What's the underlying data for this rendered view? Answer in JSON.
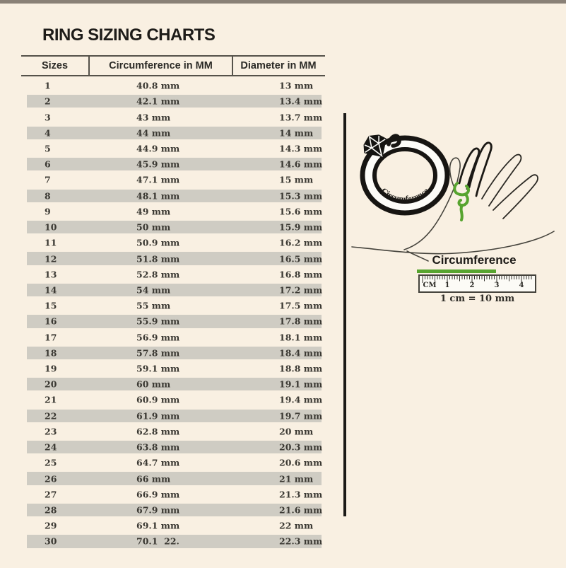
{
  "page": {
    "title": "RING SIZING CHARTS"
  },
  "chart_data": {
    "type": "table",
    "title": "RING SIZING CHARTS",
    "columns": [
      "Sizes",
      "Circumference in MM",
      "Diameter in MM"
    ],
    "rows": [
      {
        "size": "1",
        "circumference": "40.8 mm",
        "diameter": "13 mm"
      },
      {
        "size": "2",
        "circumference": "42.1 mm",
        "diameter": "13.4 mm"
      },
      {
        "size": "3",
        "circumference": "43 mm",
        "diameter": "13.7 mm"
      },
      {
        "size": "4",
        "circumference": "44 mm",
        "diameter": "14 mm"
      },
      {
        "size": "5",
        "circumference": "44.9 mm",
        "diameter": "14.3 mm"
      },
      {
        "size": "6",
        "circumference": "45.9 mm",
        "diameter": "14.6 mm"
      },
      {
        "size": "7",
        "circumference": "47.1 mm",
        "diameter": "15 mm"
      },
      {
        "size": "8",
        "circumference": "48.1 mm",
        "diameter": "15.3 mm"
      },
      {
        "size": "9",
        "circumference": "49 mm",
        "diameter": "15.6 mm"
      },
      {
        "size": "10",
        "circumference": "50 mm",
        "diameter": "15.9 mm"
      },
      {
        "size": "11",
        "circumference": "50.9 mm",
        "diameter": "16.2 mm"
      },
      {
        "size": "12",
        "circumference": "51.8 mm",
        "diameter": "16.5 mm"
      },
      {
        "size": "13",
        "circumference": "52.8 mm",
        "diameter": "16.8 mm"
      },
      {
        "size": "14",
        "circumference": "54 mm",
        "diameter": "17.2 mm"
      },
      {
        "size": "15",
        "circumference": "55 mm",
        "diameter": "17.5 mm"
      },
      {
        "size": "16",
        "circumference": "55.9 mm",
        "diameter": "17.8 mm"
      },
      {
        "size": "17",
        "circumference": "56.9 mm",
        "diameter": "18.1 mm"
      },
      {
        "size": "18",
        "circumference": "57.8 mm",
        "diameter": "18.4 mm"
      },
      {
        "size": "19",
        "circumference": "59.1 mm",
        "diameter": "18.8 mm"
      },
      {
        "size": "20",
        "circumference": "60 mm",
        "diameter": "19.1 mm"
      },
      {
        "size": "21",
        "circumference": "60.9 mm",
        "diameter": "19.4 mm"
      },
      {
        "size": "22",
        "circumference": "61.9 mm",
        "diameter": "19.7 mm"
      },
      {
        "size": "23",
        "circumference": "62.8 mm",
        "diameter": "20 mm"
      },
      {
        "size": "24",
        "circumference": "63.8 mm",
        "diameter": "20.3 mm"
      },
      {
        "size": "25",
        "circumference": "64.7 mm",
        "diameter": "20.6 mm"
      },
      {
        "size": "26",
        "circumference": "66 mm",
        "diameter": "21 mm"
      },
      {
        "size": "27",
        "circumference": "66.9 mm",
        "diameter": "21.3 mm"
      },
      {
        "size": "28",
        "circumference": "67.9 mm",
        "diameter": "21.6 mm"
      },
      {
        "size": "29",
        "circumference": "69.1 mm",
        "diameter": "22 mm"
      },
      {
        "size": "30",
        "circumference": "70.1  22.",
        "diameter": "22.3 mm"
      }
    ]
  },
  "illustration": {
    "ring_label": "Circumference",
    "ruler_label": "Circumference",
    "ruler_ticks": [
      "CM",
      "1",
      "2",
      "3",
      "4"
    ],
    "ruler_note": "1 cm  =  10 mm"
  },
  "colors": {
    "background": "#f9f0e2",
    "row_shade": "#cfccc3",
    "accent_green": "#57a42f",
    "divider": "#1b1a17",
    "top_bar": "#8a8177"
  }
}
